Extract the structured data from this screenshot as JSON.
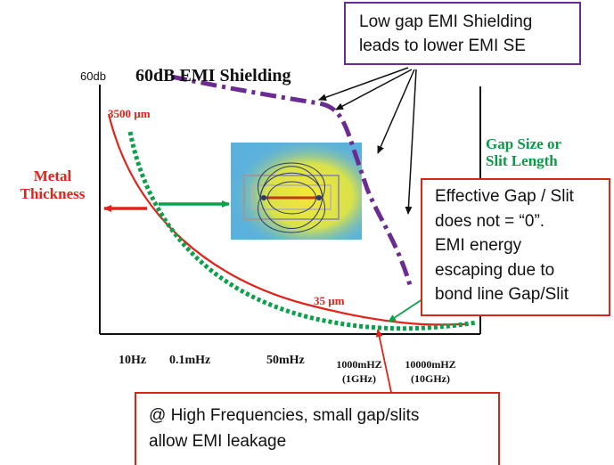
{
  "colors": {
    "metal_curve": "#e2231a",
    "gap_curve": "#0aa14a",
    "purple_curve": "#6a2c91",
    "purple_box_border": "#6a2c91",
    "red_box_border": "#d62718",
    "label_red": "#e2231a",
    "label_green": "#0a9a48",
    "axis": "#111111",
    "inset_bg": "#5ab1dc",
    "inset_glow": "#f2e13c"
  },
  "y_axis": {
    "top_label": "60db"
  },
  "title": "60dB EMI Shielding",
  "labels": {
    "metal_thickness": [
      "Metal",
      "Thickness"
    ],
    "gap_size": [
      "Gap Size or",
      "Slit Length"
    ],
    "thickness_max": "3500 µm",
    "thickness_min": "35 µm"
  },
  "x_ticks": [
    [
      "10Hz"
    ],
    [
      "0.1mHz"
    ],
    [
      "50mHz"
    ],
    [
      "1000mHZ",
      "(1GHz)"
    ],
    [
      "10000mHZ",
      "(10GHz)"
    ]
  ],
  "callouts": {
    "low_gap": [
      "Low gap EMI Shielding",
      "leads to lower EMI SE"
    ],
    "effective_gap": [
      "Effective Gap / Slit",
      "does not = “0”.",
      "EMI energy",
      "escaping due to",
      "bond line Gap/Slit"
    ],
    "high_freq": [
      "@ High Frequencies, small gap/slits",
      "allow EMI leakage"
    ]
  },
  "inset": {
    "icon": "field-leakage-image"
  }
}
